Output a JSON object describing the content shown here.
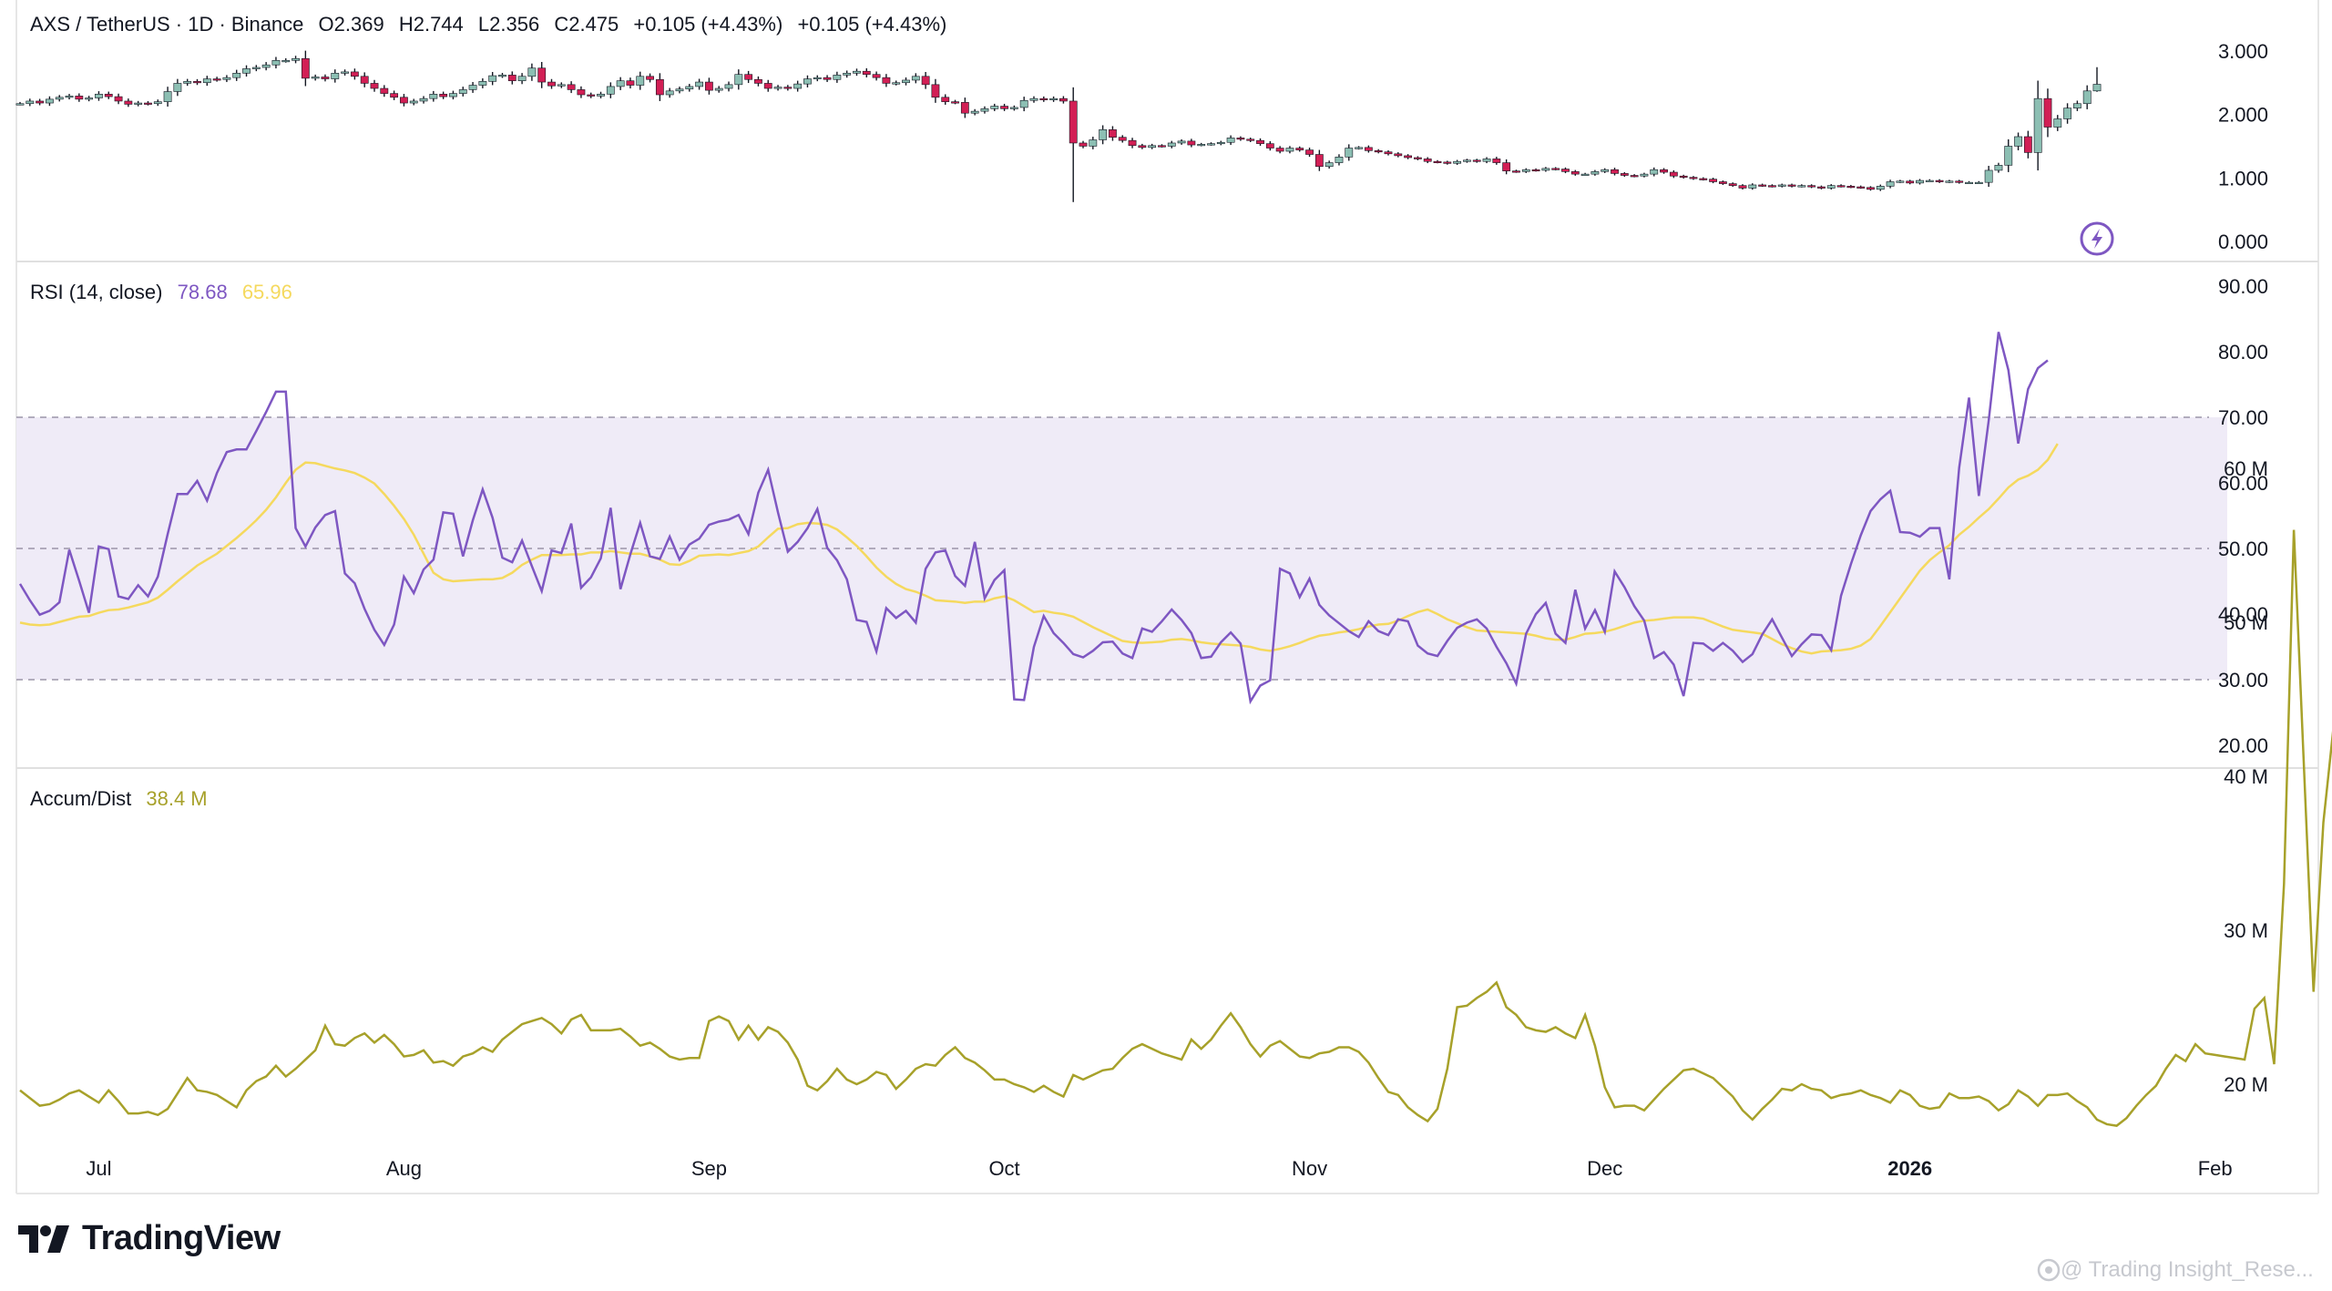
{
  "header": {
    "symbol": "AXS / TetherUS · 1D · Binance",
    "open": "O2.369",
    "high": "H2.744",
    "low": "L2.356",
    "close": "C2.475",
    "change1": "+0.105 (+4.43%)",
    "change2": "+0.105 (+4.43%)"
  },
  "rsi_legend": {
    "label": "RSI (14, close)",
    "rsi_value": "78.68",
    "ma_value": "65.96"
  },
  "ad_legend": {
    "label": "Accum/Dist",
    "value": "38.4 M"
  },
  "x_axis": [
    "Jul",
    "Aug",
    "Sep",
    "Oct",
    "Nov",
    "Dec",
    "2026",
    "Feb"
  ],
  "price_axis": [
    "3.000",
    "2.000",
    "1.000",
    "0.000"
  ],
  "rsi_axis": [
    "90.00",
    "80.00",
    "70.00",
    "60.00",
    "50.00",
    "40.00",
    "30.00",
    "20.00"
  ],
  "ad_axis": [
    "60 M",
    "50 M",
    "40 M",
    "30 M",
    "20 M"
  ],
  "brand": "TradingView",
  "watermark": "@ Trading Insight_Rese...",
  "colors": {
    "up": "#8cbfb3",
    "down": "#d21f55",
    "rsi_line": "#7e57c2",
    "rsi_ma": "#f5d95e",
    "rsi_band": "#efebf7",
    "ad_line": "#a7a12a",
    "grid": "#e6e6e6",
    "text": "#131722"
  },
  "icons": [
    "lightning-icon",
    "tradingview-logo-icon",
    "watermark-icon"
  ],
  "chart_data": [
    {
      "type": "candlestick",
      "title": "AXS / TetherUS · 1D · Binance",
      "ylim": [
        0,
        3.2
      ],
      "yticks": [
        3,
        2,
        1,
        0
      ],
      "date_range": [
        "2025-06-23",
        "2026-01-23"
      ],
      "close": [
        2.17,
        2.21,
        2.18,
        2.24,
        2.27,
        2.29,
        2.24,
        2.26,
        2.32,
        2.28,
        2.21,
        2.16,
        2.18,
        2.17,
        2.2,
        2.36,
        2.49,
        2.52,
        2.5,
        2.56,
        2.55,
        2.58,
        2.65,
        2.72,
        2.74,
        2.78,
        2.85,
        2.85,
        2.88,
        2.57,
        2.59,
        2.56,
        2.65,
        2.67,
        2.6,
        2.49,
        2.41,
        2.33,
        2.27,
        2.18,
        2.21,
        2.25,
        2.32,
        2.28,
        2.33,
        2.39,
        2.46,
        2.52,
        2.61,
        2.62,
        2.53,
        2.6,
        2.73,
        2.51,
        2.45,
        2.47,
        2.39,
        2.31,
        2.29,
        2.32,
        2.44,
        2.53,
        2.46,
        2.6,
        2.55,
        2.31,
        2.37,
        2.4,
        2.44,
        2.51,
        2.38,
        2.41,
        2.47,
        2.63,
        2.55,
        2.49,
        2.41,
        2.43,
        2.41,
        2.48,
        2.56,
        2.58,
        2.55,
        2.62,
        2.65,
        2.68,
        2.63,
        2.58,
        2.49,
        2.5,
        2.54,
        2.6,
        2.47,
        2.27,
        2.2,
        2.19,
        2.02,
        2.05,
        2.09,
        2.13,
        2.09,
        2.11,
        2.22,
        2.25,
        2.23,
        2.25,
        2.21,
        1.55,
        1.5,
        1.6,
        1.76,
        1.64,
        1.59,
        1.51,
        1.48,
        1.51,
        1.5,
        1.55,
        1.58,
        1.52,
        1.53,
        1.54,
        1.56,
        1.63,
        1.61,
        1.59,
        1.54,
        1.47,
        1.42,
        1.47,
        1.44,
        1.37,
        1.18,
        1.24,
        1.33,
        1.47,
        1.48,
        1.43,
        1.41,
        1.38,
        1.35,
        1.32,
        1.3,
        1.26,
        1.25,
        1.23,
        1.26,
        1.28,
        1.26,
        1.3,
        1.24,
        1.11,
        1.1,
        1.13,
        1.12,
        1.15,
        1.14,
        1.1,
        1.06,
        1.06,
        1.1,
        1.13,
        1.07,
        1.04,
        1.03,
        1.06,
        1.13,
        1.09,
        1.03,
        1.01,
        0.99,
        0.98,
        0.94,
        0.91,
        0.88,
        0.84,
        0.89,
        0.88,
        0.87,
        0.89,
        0.87,
        0.88,
        0.86,
        0.84,
        0.88,
        0.87,
        0.86,
        0.85,
        0.82,
        0.87,
        0.94,
        0.95,
        0.92,
        0.96,
        0.96,
        0.94,
        0.95,
        0.93,
        0.93,
        0.93,
        1.12,
        1.2,
        1.5,
        1.65,
        1.4,
        2.25,
        1.8,
        1.93,
        2.1,
        2.17,
        2.37,
        2.475
      ]
    },
    {
      "type": "line",
      "title": "RSI (14, close)",
      "ylim": [
        20,
        90
      ],
      "yticks": [
        90,
        80,
        70,
        60,
        50,
        40,
        30,
        20
      ],
      "bands": {
        "upper": 70,
        "middle": 50,
        "lower": 30
      },
      "series": [
        {
          "name": "RSI",
          "values": [
            44.6,
            42.1,
            39.9,
            40.5,
            41.8,
            49.8,
            45.1,
            40.2,
            50.3,
            49.9,
            42.7,
            42.3,
            44.4,
            42.7,
            45.7,
            52.2,
            58.3,
            58.3,
            60.3,
            57.3,
            61.5,
            64.7,
            65.1,
            65.1,
            67.9,
            70.8,
            73.9,
            73.9,
            53.1,
            50.3,
            53.2,
            55.1,
            55.7,
            46.2,
            44.7,
            40.8,
            37.6,
            35.3,
            38.4,
            45.7,
            43.2,
            46.8,
            48.3,
            55.5,
            55.3,
            48.8,
            54.3,
            59.0,
            54.7,
            48.6,
            47.9,
            51.2,
            47.3,
            43.5,
            49.7,
            49.3,
            53.8,
            44.0,
            45.6,
            48.5,
            56.2,
            43.8,
            49.1,
            53.9,
            48.8,
            48.4,
            51.8,
            48.3,
            50.6,
            51.5,
            53.6,
            54.1,
            54.4,
            55.1,
            52.2,
            58.5,
            62.0,
            55.5,
            49.5,
            51.0,
            53.1,
            56.0,
            50.1,
            48.2,
            45.3,
            39.1,
            38.8,
            34.3,
            40.9,
            39.4,
            40.5,
            38.7,
            46.9,
            49.4,
            49.7,
            45.8,
            44.3,
            51.0,
            42.4,
            45.2,
            46.7,
            27.0,
            26.9,
            35.0,
            39.7,
            37.1,
            35.6,
            33.9,
            33.4,
            34.4,
            35.7,
            35.8,
            34.0,
            33.3,
            37.8,
            37.3,
            38.9,
            40.7,
            39.1,
            37.1,
            33.3,
            33.5,
            35.7,
            37.2,
            35.5,
            26.7,
            29.1,
            29.9,
            46.9,
            46.2,
            42.6,
            45.4,
            41.4,
            39.8,
            38.6,
            37.4,
            36.5,
            38.9,
            37.4,
            36.8,
            39.2,
            38.9,
            35.2,
            34.0,
            33.6,
            35.9,
            37.9,
            38.7,
            39.2,
            37.8,
            35.0,
            32.5,
            29.4,
            37.0,
            40.0,
            41.7,
            37.0,
            35.6,
            43.7,
            37.8,
            40.6,
            37.3,
            46.5,
            44.1,
            41.2,
            39.0,
            33.3,
            34.2,
            32.3,
            27.5,
            35.6,
            35.5,
            34.4,
            35.6,
            34.4,
            32.7,
            33.9,
            36.9,
            39.2,
            36.4,
            33.6,
            35.4,
            36.9,
            36.8,
            34.5,
            42.8,
            47.6,
            52.0,
            55.7,
            57.5,
            58.8,
            52.5,
            52.4,
            51.8,
            53.1,
            53.1,
            45.3,
            62.3,
            73.0,
            58.0,
            69.5,
            83.0,
            77.2,
            66.0,
            74.3,
            77.5,
            78.68
          ]
        },
        {
          "name": "MA",
          "values": [
            38.7,
            38.4,
            38.3,
            38.4,
            38.8,
            39.2,
            39.6,
            39.7,
            40.2,
            40.6,
            40.7,
            41.0,
            41.4,
            41.8,
            42.5,
            43.7,
            45.0,
            46.2,
            47.4,
            48.3,
            49.2,
            50.4,
            51.6,
            52.9,
            54.3,
            55.9,
            57.8,
            60.0,
            62.0,
            63.1,
            63.0,
            62.6,
            62.2,
            61.9,
            61.5,
            60.8,
            59.9,
            58.3,
            56.5,
            54.5,
            52.1,
            49.2,
            46.3,
            45.3,
            45.0,
            45.1,
            45.2,
            45.3,
            45.3,
            45.5,
            46.3,
            47.5,
            48.3,
            49.0,
            49.0,
            49.0,
            49.1,
            49.1,
            49.4,
            49.4,
            49.6,
            49.4,
            49.2,
            49.2,
            48.8,
            48.3,
            47.6,
            47.5,
            48.1,
            48.9,
            49.0,
            49.1,
            49.0,
            49.3,
            49.6,
            50.3,
            51.7,
            53.0,
            53.1,
            53.7,
            53.9,
            53.8,
            53.6,
            52.9,
            51.7,
            50.4,
            48.8,
            47.1,
            45.7,
            44.6,
            43.8,
            43.4,
            42.8,
            42.1,
            42.0,
            41.9,
            41.7,
            41.9,
            41.9,
            42.4,
            42.7,
            42.1,
            41.2,
            40.3,
            40.5,
            40.2,
            40.0,
            39.6,
            38.8,
            38.0,
            37.3,
            36.6,
            35.9,
            35.7,
            35.6,
            35.7,
            35.8,
            36.1,
            36.2,
            36.0,
            35.7,
            35.5,
            35.4,
            35.3,
            35.2,
            35.0,
            34.6,
            34.4,
            34.7,
            35.1,
            35.6,
            36.2,
            36.7,
            36.9,
            37.2,
            37.4,
            37.7,
            38.1,
            38.4,
            38.5,
            39.0,
            39.7,
            40.3,
            40.7,
            40.0,
            39.2,
            38.6,
            38.0,
            37.5,
            37.4,
            37.3,
            37.2,
            37.1,
            37.0,
            36.7,
            36.3,
            36.1,
            36.1,
            36.5,
            37.0,
            37.1,
            37.3,
            37.7,
            38.2,
            38.7,
            39.0,
            39.1,
            39.3,
            39.5,
            39.5,
            39.5,
            39.3,
            38.7,
            38.1,
            37.6,
            37.4,
            37.2,
            37.0,
            36.2,
            35.4,
            34.8,
            34.3,
            34.0,
            34.3,
            34.4,
            34.5,
            34.7,
            35.2,
            36.2,
            38.2,
            40.3,
            42.4,
            44.5,
            46.6,
            48.2,
            49.4,
            50.5,
            52.1,
            53.3,
            54.7,
            56.0,
            57.6,
            59.3,
            60.5,
            61.1,
            62.0,
            63.5,
            65.96
          ]
        }
      ]
    },
    {
      "type": "line",
      "title": "Accum/Dist",
      "ylabel": "M",
      "ylim": [
        15,
        60
      ],
      "yticks": [
        60,
        50,
        40,
        30,
        20
      ],
      "series": [
        {
          "name": "Accum/Dist",
          "values": [
            19.6,
            19.1,
            18.6,
            18.7,
            19.0,
            19.4,
            19.6,
            19.2,
            18.8,
            19.6,
            18.9,
            18.1,
            18.1,
            18.2,
            18.0,
            18.4,
            19.4,
            20.4,
            19.6,
            19.5,
            19.3,
            18.9,
            18.5,
            19.6,
            20.2,
            20.5,
            21.2,
            20.5,
            21.0,
            21.6,
            22.2,
            23.8,
            22.6,
            22.5,
            23.0,
            23.3,
            22.7,
            23.2,
            22.6,
            21.8,
            21.9,
            22.2,
            21.4,
            21.5,
            21.2,
            21.8,
            22.0,
            22.4,
            22.1,
            22.9,
            23.4,
            23.9,
            24.1,
            24.3,
            23.9,
            23.3,
            24.2,
            24.5,
            23.5,
            23.5,
            23.5,
            23.6,
            23.1,
            22.5,
            22.7,
            22.3,
            21.8,
            21.6,
            21.7,
            21.7,
            24.1,
            24.4,
            24.1,
            22.9,
            23.8,
            22.9,
            23.7,
            23.4,
            22.7,
            21.6,
            19.9,
            19.6,
            20.2,
            21.0,
            20.3,
            20.0,
            20.3,
            20.8,
            20.6,
            19.7,
            20.3,
            21.0,
            21.3,
            21.2,
            21.9,
            22.4,
            21.7,
            21.4,
            20.9,
            20.3,
            20.3,
            20.0,
            19.8,
            19.5,
            19.9,
            19.5,
            19.2,
            20.6,
            20.3,
            20.6,
            20.9,
            21.0,
            21.7,
            22.3,
            22.6,
            22.3,
            22.0,
            21.8,
            21.6,
            22.9,
            22.3,
            22.9,
            23.8,
            24.6,
            23.7,
            22.6,
            21.8,
            22.5,
            22.8,
            22.3,
            21.8,
            21.7,
            22.0,
            22.1,
            22.4,
            22.4,
            22.1,
            21.4,
            20.4,
            19.5,
            19.3,
            18.5,
            18.0,
            17.6,
            18.4,
            21.0,
            25.0,
            25.1,
            25.6,
            26.0,
            26.6,
            25.0,
            24.5,
            23.7,
            23.5,
            23.4,
            23.7,
            23.3,
            23.0,
            24.5,
            22.5,
            19.8,
            18.5,
            18.6,
            18.6,
            18.3,
            19.0,
            19.7,
            20.3,
            20.9,
            21.0,
            20.7,
            20.4,
            19.8,
            19.2,
            18.3,
            17.7,
            18.4,
            19.0,
            19.7,
            19.6,
            20.0,
            19.7,
            19.6,
            19.1,
            19.3,
            19.4,
            19.6,
            19.3,
            19.1,
            18.8,
            19.6,
            19.3,
            18.6,
            18.4,
            18.5,
            19.4,
            19.1,
            19.1,
            19.2,
            18.9,
            18.3,
            18.7,
            19.6,
            19.2,
            18.6,
            19.3,
            19.3,
            19.4,
            18.9,
            18.5,
            17.7,
            17.4,
            17.3,
            17.8,
            18.6,
            19.3,
            19.9,
            21.0,
            21.9,
            21.5,
            22.6,
            22.0,
            21.9,
            21.8,
            21.7,
            21.6,
            24.9,
            25.6,
            21.3,
            33.0,
            56.0,
            41.0,
            26.0,
            37.0,
            43.0,
            38.4
          ]
        }
      ]
    }
  ]
}
